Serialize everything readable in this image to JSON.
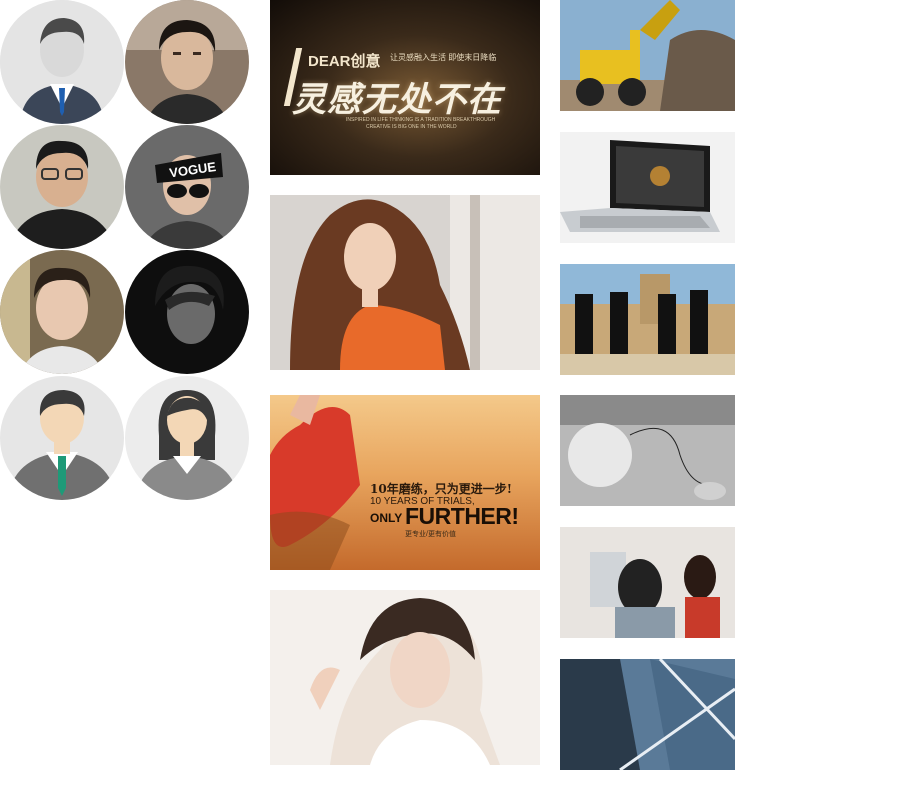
{
  "avatars": [
    {
      "name": "avatar-businessman-icon"
    },
    {
      "name": "avatar-user-2"
    },
    {
      "name": "avatar-user-3"
    },
    {
      "name": "avatar-user-4"
    },
    {
      "name": "avatar-user-5"
    },
    {
      "name": "avatar-user-6"
    },
    {
      "name": "avatar-man-icon"
    },
    {
      "name": "avatar-woman-icon"
    }
  ],
  "banners": {
    "dear": {
      "brand": "DEAR创意",
      "subtitle": "让灵感融入生活 即使末日降临",
      "headline": "灵感无处不在",
      "english1": "INSPIRED IN LIFE THINKING IS A TRADITION BREAKTHROUGH",
      "english2": "CREATIVE IS BIG ONE IN THE WORLD"
    },
    "further": {
      "chinese": "10年磨练，只为更进一步!",
      "english1": "10 YEARS OF TRIALS,",
      "only": "ONLY",
      "further": "FURTHER!",
      "tagline": "更专业/更有价值"
    }
  },
  "colors": {
    "background": "#ffffff",
    "avatar_gray": "#e6e6e6"
  }
}
